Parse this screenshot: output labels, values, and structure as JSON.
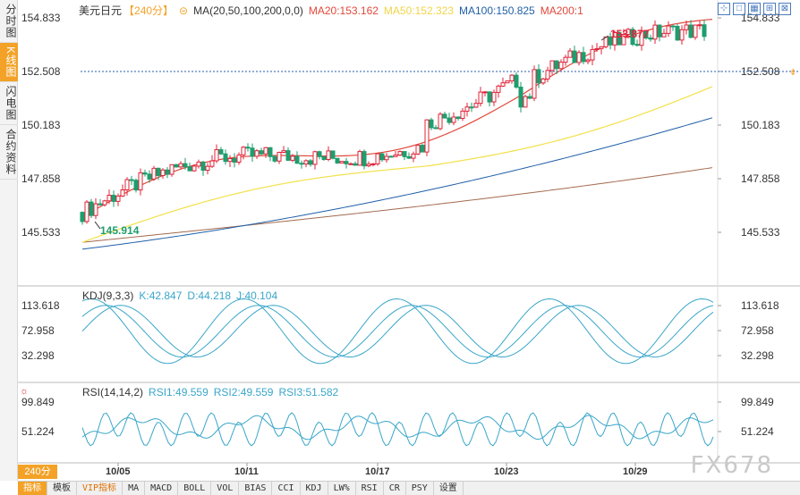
{
  "sidebar": {
    "items": [
      {
        "label": "分时图",
        "active": false
      },
      {
        "label": "K线图",
        "active": true
      },
      {
        "label": "闪电图",
        "active": false
      },
      {
        "label": "合约资料",
        "active": false
      }
    ]
  },
  "main_legend": {
    "symbol": "美元日元",
    "period": "【240分】",
    "ma_label": "MA(20,50,100,200,0,0)",
    "ma20": "MA20:153.162",
    "ma50": "MA50:152.323",
    "ma100": "MA100:150.825",
    "ma200": "MA200:1"
  },
  "kdj_legend": {
    "label": "KDJ(9,3,3)",
    "k": "K:42.847",
    "d": "D:44.218",
    "j": "J:40.104"
  },
  "rsi_legend": {
    "label": "RSI(14,14,2)",
    "rsi1": "RSI1:49.559",
    "rsi2": "RSI2:49.559",
    "rsi3": "RSI3:51.582"
  },
  "period_badge": "240分",
  "watermark": "FX678",
  "top_icons": [
    "expand-icon",
    "fullscreen-icon",
    "chart-type-icon",
    "candle-icon",
    "settings-icon"
  ],
  "tabs": [
    {
      "label": "指标",
      "active": true
    },
    {
      "label": "模板"
    },
    {
      "label": "VIP指标",
      "vip": true
    },
    {
      "label": "MA"
    },
    {
      "label": "MACD"
    },
    {
      "label": "BOLL"
    },
    {
      "label": "VOL"
    },
    {
      "label": "BIAS"
    },
    {
      "label": "CCI"
    },
    {
      "label": "KDJ"
    },
    {
      "label": "LW%"
    },
    {
      "label": "RSI"
    },
    {
      "label": "CR"
    },
    {
      "label": "PSY"
    },
    {
      "label": "设置"
    }
  ],
  "colors": {
    "up": "#e0243a",
    "down": "#1d9e6e",
    "ma20": "#e0483a",
    "ma50": "#f2e14a",
    "ma100": "#1f5fa8",
    "ma200": "#a36a4f",
    "kdj_k": "#3aa6c9",
    "price_line": "#2a5db0"
  },
  "chart_data": {
    "type": "candlestick",
    "price_ticks": [
      154.833,
      152.508,
      150.183,
      147.858,
      145.533
    ],
    "kdj_ticks": [
      113.618,
      72.958,
      32.298
    ],
    "rsi_ticks": [
      99.849,
      51.224
    ],
    "x_labels": [
      "10/05",
      "10/11",
      "10/17",
      "10/23",
      "10/29"
    ],
    "annotations": {
      "high": "153.877",
      "low": "145.914"
    },
    "last_price": 152.508
  }
}
